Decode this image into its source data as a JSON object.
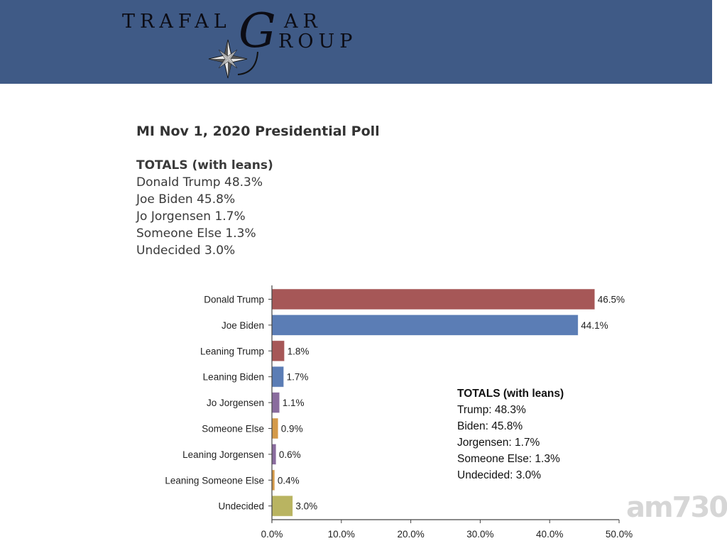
{
  "header": {
    "logo_line1": "TRAFAL",
    "logo_g": "G",
    "logo_ar": "AR",
    "logo_line2": "ROUP",
    "logo_icon": "compass-star-icon",
    "background_color": "#3f5a86"
  },
  "page": {
    "title": "MI Nov 1, 2020 Presidential Poll",
    "totals_heading": "TOTALS (with leans)",
    "totals": [
      "Donald Trump 48.3%",
      "Joe Biden 45.8%",
      "Jo Jorgensen 1.7%",
      "Someone Else 1.3%",
      "Undecided 3.0%"
    ]
  },
  "chart_data": {
    "type": "bar",
    "orientation": "horizontal",
    "title": "",
    "xlabel": "",
    "ylabel": "",
    "xlim": [
      0,
      50
    ],
    "grid": false,
    "categories": [
      "Donald Trump",
      "Joe Biden",
      "Leaning Trump",
      "Leaning Biden",
      "Jo Jorgensen",
      "Someone Else",
      "Leaning Jorgensen",
      "Leaning Someone Else",
      "Undecided"
    ],
    "values": [
      46.5,
      44.1,
      1.8,
      1.7,
      1.1,
      0.9,
      0.6,
      0.4,
      3.0
    ],
    "value_labels": [
      "46.5%",
      "44.1%",
      "1.8%",
      "1.7%",
      "1.1%",
      "0.9%",
      "0.6%",
      "0.4%",
      "3.0%"
    ],
    "colors": [
      "#a65757",
      "#5b7db5",
      "#a65757",
      "#5b7db5",
      "#8a6c9e",
      "#d49a4a",
      "#8a6c9e",
      "#d49a4a",
      "#b9b461"
    ],
    "x_ticks": [
      0,
      10,
      20,
      30,
      40,
      50
    ],
    "x_tick_labels": [
      "0.0%",
      "10.0%",
      "20.0%",
      "30.0%",
      "40.0%",
      "50.0%"
    ],
    "annotation": {
      "heading": "TOTALS (with leans)",
      "lines": [
        "Trump: 48.3%",
        "Biden: 45.8%",
        "Jorgensen: 1.7%",
        "Someone Else: 1.3%",
        "Undecided: 3.0%"
      ],
      "placement": "bottom-right"
    }
  },
  "watermark": "am730"
}
